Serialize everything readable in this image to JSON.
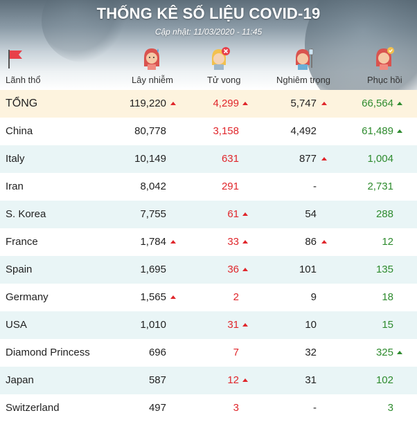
{
  "header": {
    "title": "THỐNG KÊ SỐ LIỆU COVID-19",
    "updated": "Cập nhật: 11/03/2020 - 11:45"
  },
  "columns": {
    "territory": "Lãnh thổ",
    "infected": "Lây nhiễm",
    "deaths": "Tử vong",
    "serious": "Nghiêm trọng",
    "recovered": "Phục hồi"
  },
  "icons": {
    "territory": "red-flag-icon",
    "infected": "sick-woman-icon",
    "deaths": "deceased-person-icon",
    "serious": "patient-on-drip-icon",
    "recovered": "recovered-woman-icon",
    "increase": "red-up-triangle-icon"
  },
  "colors": {
    "deaths": "#e0262b",
    "recovered": "#2e8b2e",
    "total_row": "#fdf3de",
    "alt_row": "#e9f5f6"
  },
  "rows": [
    {
      "name": "TỔNG",
      "infected": "119,220",
      "deaths": "4,299",
      "serious": "5,747",
      "recovered": "66,564",
      "up": {
        "infected": true,
        "deaths": true,
        "serious": true,
        "recovered": true
      }
    },
    {
      "name": "China",
      "infected": "80,778",
      "deaths": "3,158",
      "serious": "4,492",
      "recovered": "61,489",
      "up": {
        "infected": false,
        "deaths": false,
        "serious": false,
        "recovered": true
      }
    },
    {
      "name": "Italy",
      "infected": "10,149",
      "deaths": "631",
      "serious": "877",
      "recovered": "1,004",
      "up": {
        "infected": false,
        "deaths": false,
        "serious": true,
        "recovered": false
      }
    },
    {
      "name": "Iran",
      "infected": "8,042",
      "deaths": "291",
      "serious": "-",
      "recovered": "2,731",
      "up": {
        "infected": false,
        "deaths": false,
        "serious": false,
        "recovered": false
      }
    },
    {
      "name": "S. Korea",
      "infected": "7,755",
      "deaths": "61",
      "serious": "54",
      "recovered": "288",
      "up": {
        "infected": false,
        "deaths": true,
        "serious": false,
        "recovered": false
      }
    },
    {
      "name": "France",
      "infected": "1,784",
      "deaths": "33",
      "serious": "86",
      "recovered": "12",
      "up": {
        "infected": true,
        "deaths": true,
        "serious": true,
        "recovered": false
      }
    },
    {
      "name": "Spain",
      "infected": "1,695",
      "deaths": "36",
      "serious": "101",
      "recovered": "135",
      "up": {
        "infected": false,
        "deaths": true,
        "serious": false,
        "recovered": false
      }
    },
    {
      "name": "Germany",
      "infected": "1,565",
      "deaths": "2",
      "serious": "9",
      "recovered": "18",
      "up": {
        "infected": true,
        "deaths": false,
        "serious": false,
        "recovered": false
      }
    },
    {
      "name": "USA",
      "infected": "1,010",
      "deaths": "31",
      "serious": "10",
      "recovered": "15",
      "up": {
        "infected": false,
        "deaths": true,
        "serious": false,
        "recovered": false
      }
    },
    {
      "name": "Diamond Princess",
      "infected": "696",
      "deaths": "7",
      "serious": "32",
      "recovered": "325",
      "up": {
        "infected": false,
        "deaths": false,
        "serious": false,
        "recovered": true
      }
    },
    {
      "name": "Japan",
      "infected": "587",
      "deaths": "12",
      "serious": "31",
      "recovered": "102",
      "up": {
        "infected": false,
        "deaths": true,
        "serious": false,
        "recovered": false
      }
    },
    {
      "name": "Switzerland",
      "infected": "497",
      "deaths": "3",
      "serious": "-",
      "recovered": "3",
      "up": {
        "infected": false,
        "deaths": false,
        "serious": false,
        "recovered": false
      }
    }
  ]
}
